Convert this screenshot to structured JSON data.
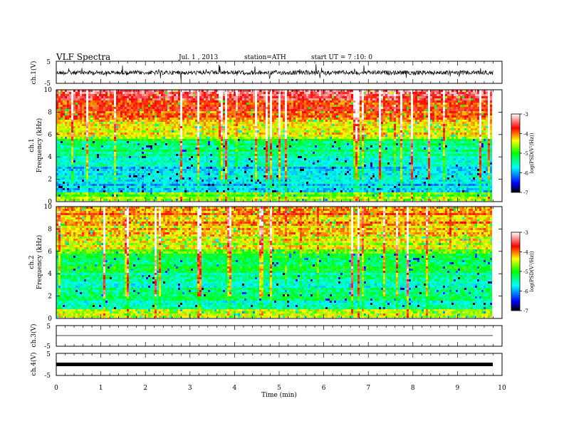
{
  "header": {
    "title": "VLF Spectra",
    "date": "Jul. 1 , 2013",
    "station": "station=ATH",
    "start": "start UT = 7 :10: 0"
  },
  "chart_data": [
    {
      "type": "line",
      "name": "ch1-waveform",
      "ylabel": "ch.1(V)",
      "ylim": [
        -5,
        5
      ],
      "yticks": [
        "5",
        "-5"
      ],
      "description_level": "noisy trace near 0 V with spikes to about +/-2 V"
    },
    {
      "type": "heatmap",
      "name": "ch1-spectrogram",
      "ylabel": "ch.1",
      "ylabel2": "Frequency (kHz)",
      "ylim": [
        0,
        10
      ],
      "yticks": [
        "0",
        "2",
        "4",
        "6",
        "8",
        "10"
      ],
      "colorbar": {
        "label": "log(PSD(V²/Hz))",
        "range": [
          -7,
          -3
        ],
        "ticks": [
          "-3",
          "-4",
          "-5",
          "-6",
          "-7"
        ]
      }
    },
    {
      "type": "heatmap",
      "name": "ch2-spectrogram",
      "ylabel": "ch.2",
      "ylabel2": "Frequency (kHz)",
      "ylim": [
        0,
        10
      ],
      "yticks": [
        "0",
        "2",
        "4",
        "6",
        "8",
        "10"
      ],
      "colorbar": {
        "label": "log(PSD(V²/Hz))",
        "range": [
          -7,
          -3
        ],
        "ticks": [
          "-3",
          "-4",
          "-5",
          "-6",
          "-7"
        ]
      }
    },
    {
      "type": "line",
      "name": "ch3-waveform",
      "ylabel": "ch.3(V)",
      "ylim": [
        -5,
        5
      ],
      "yticks": [
        "5",
        "-5"
      ]
    },
    {
      "type": "line",
      "name": "ch4-waveform",
      "ylabel": "ch.4(V)",
      "ylim": [
        -5,
        5
      ],
      "yticks": [
        "5",
        "-5"
      ]
    }
  ],
  "xaxis": {
    "label": "Time (min)",
    "xlim": [
      0,
      10
    ],
    "ticks": [
      "0",
      "1",
      "2",
      "3",
      "4",
      "5",
      "6",
      "7",
      "8",
      "9",
      "10"
    ],
    "data_end": 9.8
  },
  "colors": {
    "scale": [
      "#000000",
      "#0000ff",
      "#00ffff",
      "#00ff00",
      "#ffff00",
      "#ff0000",
      "#ffffff"
    ]
  }
}
